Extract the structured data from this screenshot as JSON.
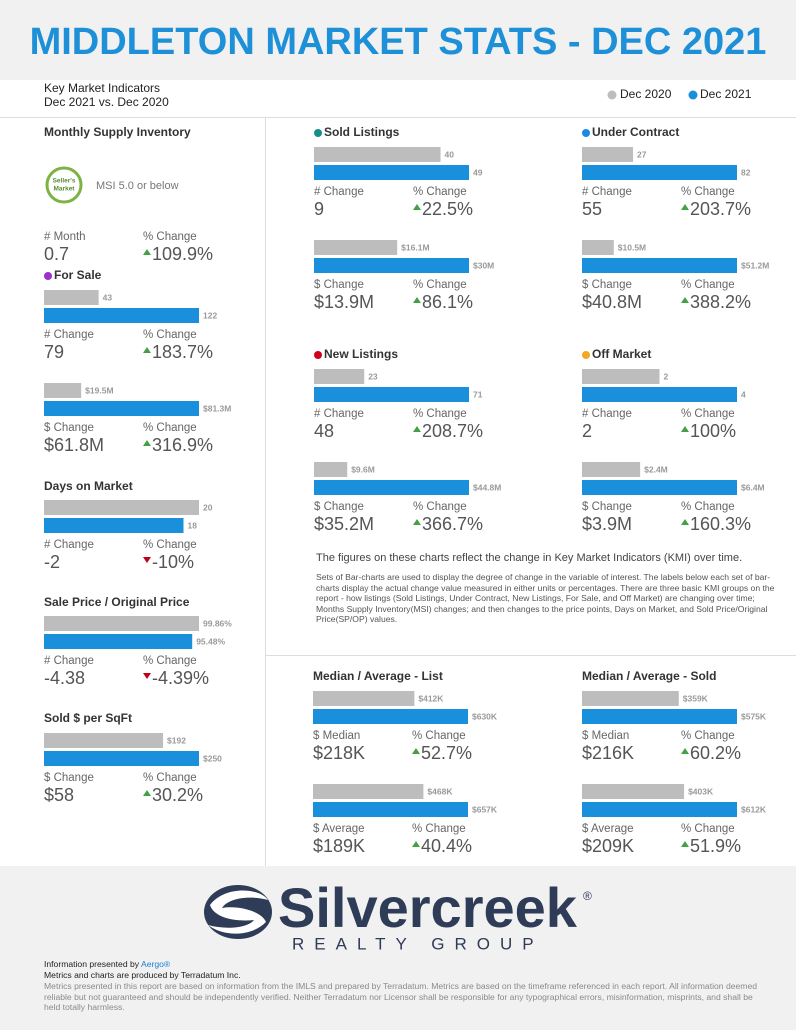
{
  "header": {
    "title": "MIDDLETON MARKET STATS - DEC 2021",
    "subtitle": [
      "Key Market Indicators",
      "Dec 2021 vs. Dec 2020"
    ]
  },
  "legend": [
    {
      "name": "Dec 2020",
      "color": "#bdbdbd"
    },
    {
      "name": "Dec 2021",
      "color": "#1a8fdb"
    }
  ],
  "panels": [
    {
      "title": "Monthly Supply Inventory",
      "badge": [
        "Seller's",
        "Market"
      ],
      "note": "MSI 5.0 or below",
      "stats": [
        {
          "label": "# Month",
          "value": "0.7"
        },
        {
          "label": "% Change",
          "value": "109.9%"
        }
      ]
    },
    {
      "title": "For Sale",
      "dot": "#9b30d0",
      "groups": [
        {
          "values": [
            43,
            122
          ],
          "stats": [
            {
              "label": "# Change",
              "value": "79"
            },
            {
              "label": "% Change",
              "value": "183.7%"
            }
          ]
        },
        {
          "values": [
            19.5,
            81.3
          ],
          "value_labels": [
            "$19.5M",
            "$81.3M"
          ],
          "stats": [
            {
              "label": "$ Change",
              "value": "$61.8M"
            },
            {
              "label": "% Change",
              "value": "316.9%"
            }
          ]
        }
      ]
    },
    {
      "title": "Days on Market",
      "groups": [
        {
          "values": [
            20,
            18
          ],
          "stats": [
            {
              "label": "# Change",
              "value": "-2"
            },
            {
              "label": "% Change",
              "value": "-10%"
            }
          ]
        }
      ]
    },
    {
      "title": "Sale Price / Original Price",
      "groups": [
        {
          "values": [
            99.86,
            95.48
          ],
          "value_labels": [
            "99.86%",
            "95.48%"
          ],
          "stats": [
            {
              "label": "# Change",
              "value": "-4.38"
            },
            {
              "label": "% Change",
              "value": "-4.39%"
            }
          ]
        }
      ]
    },
    {
      "title": "Sold $ per SqFt",
      "groups": [
        {
          "values": [
            192,
            250
          ],
          "value_labels": [
            "$192",
            "$250"
          ],
          "stats": [
            {
              "label": "$ Change",
              "value": "$58"
            },
            {
              "label": "% Change",
              "value": "30.2%"
            }
          ]
        }
      ]
    },
    {
      "title": "Sold Listings",
      "dot": "#138f8a",
      "groups": [
        {
          "values": [
            40,
            49
          ],
          "stats": [
            {
              "label": "# Change",
              "value": "9"
            },
            {
              "label": "% Change",
              "value": "22.5%"
            }
          ]
        },
        {
          "values": [
            16.1,
            30
          ],
          "value_labels": [
            "$16.1M",
            "$30M"
          ],
          "stats": [
            {
              "label": "$ Change",
              "value": "$13.9M"
            },
            {
              "label": "% Change",
              "value": "86.1%"
            }
          ]
        }
      ]
    },
    {
      "title": "Under Contract",
      "dot": "#1e88e5",
      "groups": [
        {
          "values": [
            27,
            82
          ],
          "stats": [
            {
              "label": "# Change",
              "value": "55"
            },
            {
              "label": "% Change",
              "value": "203.7%"
            }
          ]
        },
        {
          "values": [
            10.5,
            51.2
          ],
          "value_labels": [
            "$10.5M",
            "$51.2M"
          ],
          "stats": [
            {
              "label": "$ Change",
              "value": "$40.8M"
            },
            {
              "label": "% Change",
              "value": "388.2%"
            }
          ]
        }
      ]
    },
    {
      "title": "New Listings",
      "dot": "#d0021b",
      "groups": [
        {
          "values": [
            23,
            71
          ],
          "stats": [
            {
              "label": "# Change",
              "value": "48"
            },
            {
              "label": "% Change",
              "value": "208.7%"
            }
          ]
        },
        {
          "values": [
            9.6,
            44.8
          ],
          "value_labels": [
            "$9.6M",
            "$44.8M"
          ],
          "stats": [
            {
              "label": "$ Change",
              "value": "$35.2M"
            },
            {
              "label": "% Change",
              "value": "366.7%"
            }
          ]
        }
      ]
    },
    {
      "title": "Off Market",
      "dot": "#f5a623",
      "groups": [
        {
          "values": [
            2,
            4
          ],
          "stats": [
            {
              "label": "# Change",
              "value": "2"
            },
            {
              "label": "% Change",
              "value": "100%"
            }
          ]
        },
        {
          "values": [
            2.4,
            6.4
          ],
          "value_labels": [
            "$2.4M",
            "$6.4M"
          ],
          "stats": [
            {
              "label": "$ Change",
              "value": "$3.9M"
            },
            {
              "label": "% Change",
              "value": "160.3%"
            }
          ]
        }
      ]
    },
    {
      "title": "Median / Average - List",
      "groups": [
        {
          "values": [
            412,
            630
          ],
          "value_labels": [
            "$412K",
            "$630K"
          ],
          "stats": [
            {
              "label": "$ Median",
              "value": "$218K"
            },
            {
              "label": "% Change",
              "value": "52.7%"
            }
          ]
        },
        {
          "values": [
            468,
            657
          ],
          "value_labels": [
            "$468K",
            "$657K"
          ],
          "stats": [
            {
              "label": "$ Average",
              "value": "$189K"
            },
            {
              "label": "% Change",
              "value": "40.4%"
            }
          ]
        }
      ]
    },
    {
      "title": "Median / Average - Sold",
      "groups": [
        {
          "values": [
            359,
            575
          ],
          "value_labels": [
            "$359K",
            "$575K"
          ],
          "stats": [
            {
              "label": "$ Median",
              "value": "$216K"
            },
            {
              "label": "% Change",
              "value": "60.2%"
            }
          ]
        },
        {
          "values": [
            403,
            612
          ],
          "value_labels": [
            "$403K",
            "$612K"
          ],
          "stats": [
            {
              "label": "$ Average",
              "value": "$209K"
            },
            {
              "label": "% Change",
              "value": "51.9%"
            }
          ]
        }
      ]
    }
  ],
  "explanation": {
    "heading": "The figures on these charts reflect the change in Key Market Indicators (KMI) over time.",
    "text": "Sets of Bar-charts are used to display the degree of change in the variable of interest. The labels below each set of bar-charts display the actual change value measured in either units or percentages. There are three basic KMI groups on the report - how listings (Sold Listings, Under Contract, New Listings, For Sale, and Off Market) are changing over time; Months Supply Inventory(MSI) changes; and then changes to the price points, Days on Market, and Sold Price/Original Price(SP/OP) values."
  },
  "logo": {
    "name": "Silvercreek",
    "mark": "®",
    "tagline": "REALTY GROUP"
  },
  "footer": {
    "presented_by": "Information presented by ",
    "presenter": "Aergo®",
    "produced_by": "Metrics and charts are produced by Terradatum Inc.",
    "disclaimer": "Metrics presented in this report are based on information from the IMLS and prepared by Terradatum. Metrics are based on the timeframe referenced in each report. All information deemed reliable but not guaranteed and should be independently verified. Neither Terradatum nor Licensor shall be responsible for any typographical errors, misinformation, misprints, and shall be held totally harmless."
  }
}
